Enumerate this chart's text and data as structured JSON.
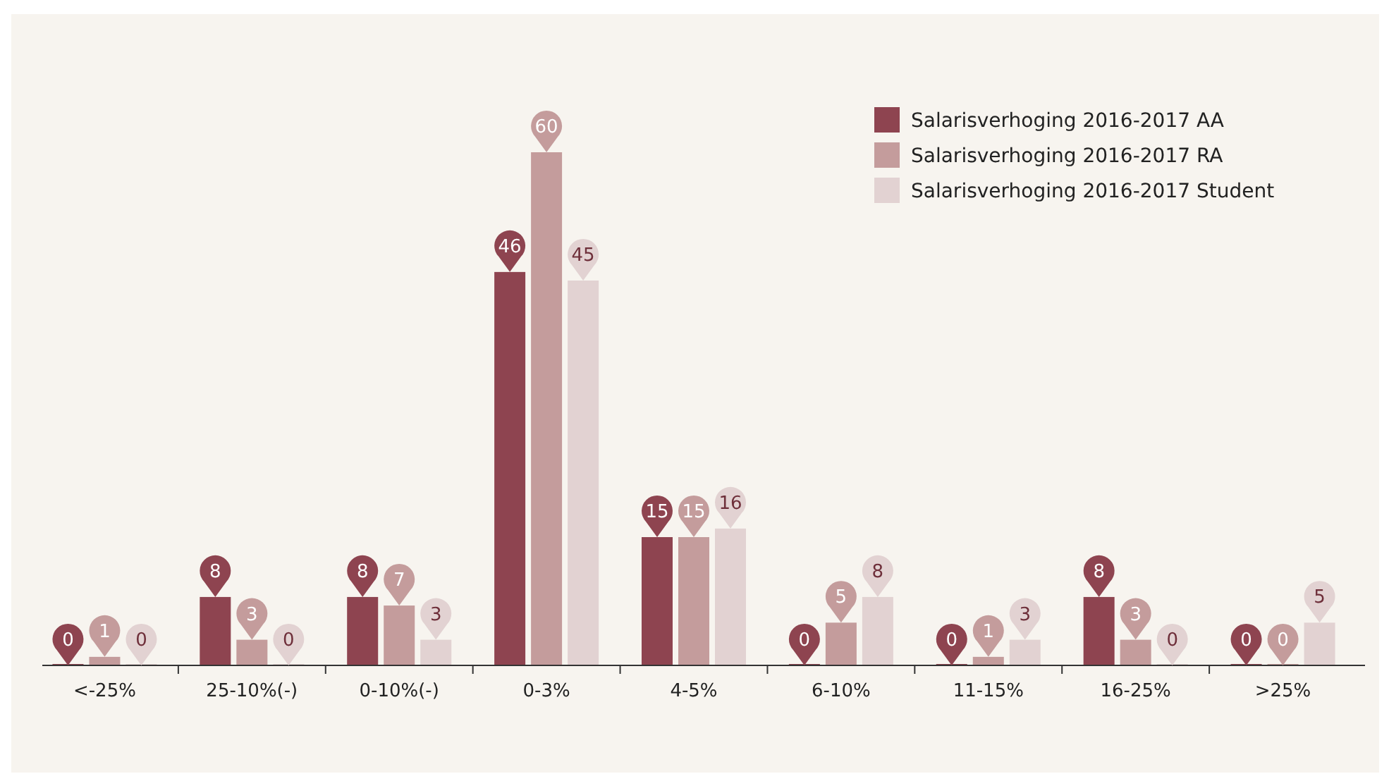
{
  "chart_data": {
    "type": "bar",
    "categories": [
      "<-25%",
      "25-10%(-)",
      "0-10%(-)",
      "0-3%",
      "4-5%",
      "6-10%",
      "11-15%",
      "16-25%",
      ">25%"
    ],
    "series": [
      {
        "name": "Salarisverhoging 2016-2017 AA",
        "color": "#8e4450",
        "values": [
          0,
          8,
          8,
          46,
          15,
          0,
          0,
          8,
          0
        ]
      },
      {
        "name": "Salarisverhoging 2016-2017 RA",
        "color": "#c49c9c",
        "values": [
          1,
          3,
          7,
          60,
          15,
          5,
          1,
          3,
          0
        ]
      },
      {
        "name": "Salarisverhoging 2016-2017 Student",
        "color": "#e2d2d2",
        "values": [
          0,
          0,
          3,
          45,
          16,
          8,
          3,
          0,
          5
        ]
      }
    ],
    "data_labels": true,
    "legend": "top right"
  }
}
